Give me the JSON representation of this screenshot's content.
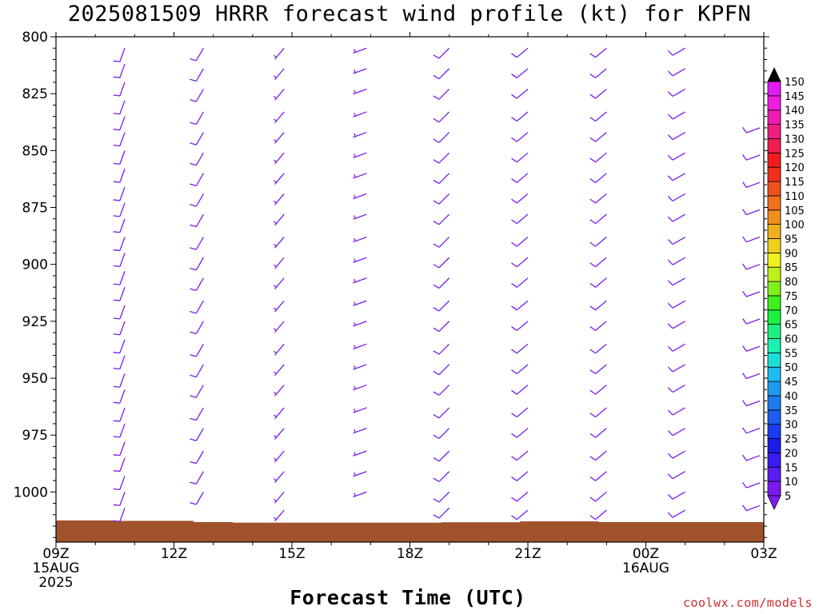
{
  "chart_data": {
    "type": "wind_barb_profile",
    "title": "2025081509 HRRR forecast wind profile (kt) for KPFN",
    "xlabel": "Forecast Time (UTC)",
    "ylabel": "",
    "credit": "coolwx.com/models",
    "x_ticks": [
      {
        "label": "09Z",
        "sub": [
          "15AUG",
          "2025"
        ],
        "hour": 0
      },
      {
        "label": "12Z",
        "sub": [],
        "hour": 3
      },
      {
        "label": "15Z",
        "sub": [],
        "hour": 6
      },
      {
        "label": "18Z",
        "sub": [],
        "hour": 9
      },
      {
        "label": "21Z",
        "sub": [],
        "hour": 12
      },
      {
        "label": "00Z",
        "sub": [
          "16AUG"
        ],
        "hour": 15
      },
      {
        "label": "03Z",
        "sub": [],
        "hour": 18
      }
    ],
    "x_range_hours": [
      0,
      18
    ],
    "y_ticks": [
      800,
      825,
      850,
      875,
      900,
      925,
      950,
      975,
      1000
    ],
    "y_range_hpa": [
      800,
      1022
    ],
    "colorbar": {
      "levels": [
        5,
        10,
        15,
        20,
        25,
        30,
        35,
        40,
        45,
        50,
        55,
        60,
        65,
        70,
        75,
        80,
        85,
        90,
        95,
        100,
        105,
        110,
        115,
        120,
        125,
        130,
        135,
        140,
        145,
        150
      ],
      "colors": [
        "#7a1cf0",
        "#5a1cf0",
        "#3a1cf0",
        "#1c1ce8",
        "#1c3cf0",
        "#1c5cf0",
        "#1c7cf0",
        "#1c9cf0",
        "#1cbcf0",
        "#1ce0d8",
        "#1cf0b0",
        "#1cf080",
        "#1cf040",
        "#40f01c",
        "#80f01c",
        "#c0f01c",
        "#f0f01c",
        "#f0d01c",
        "#f0b01c",
        "#f0901c",
        "#f0701c",
        "#f0501c",
        "#f0301c",
        "#f01c1c",
        "#f01c50",
        "#f01c80",
        "#f01cb0",
        "#f01ce0",
        "#e01cf0",
        "#000000"
      ]
    },
    "terrain_color": "#a0522d",
    "terrain_surface_hpa": [
      [
        0,
        1012.5
      ],
      [
        1.5,
        1012.7
      ],
      [
        3.5,
        1013.2
      ],
      [
        4.5,
        1013.5
      ],
      [
        9.8,
        1013.3
      ],
      [
        11.8,
        1012.9
      ],
      [
        13.8,
        1013.2
      ],
      [
        18,
        1013.2
      ]
    ],
    "barb_color": "#7a1cf0",
    "profiles": [
      {
        "hour": 1.75,
        "from_dir_deg": 200,
        "speed_kt": 10,
        "levels": [
          805,
          812,
          820,
          828,
          835,
          842,
          850,
          858,
          866,
          873,
          880,
          888,
          895,
          903,
          910,
          918,
          925,
          933,
          940,
          948,
          955,
          963,
          970,
          978,
          985,
          993,
          1000,
          1007
        ]
      },
      {
        "hour": 3.75,
        "from_dir_deg": 210,
        "speed_kt": 10,
        "levels": [
          805,
          814,
          823,
          833,
          842,
          851,
          860,
          869,
          878,
          888,
          897,
          906,
          916,
          925,
          935,
          944,
          953,
          963,
          972,
          982,
          991,
          1000
        ]
      },
      {
        "hour": 5.8,
        "from_dir_deg": 220,
        "speed_kt": 8,
        "levels": [
          805,
          814,
          823,
          833,
          842,
          851,
          860,
          869,
          878,
          888,
          897,
          906,
          916,
          925,
          935,
          944,
          953,
          963,
          972,
          982,
          991,
          1000,
          1008
        ]
      },
      {
        "hour": 7.9,
        "from_dir_deg": 250,
        "speed_kt": 8,
        "levels": [
          805,
          814,
          823,
          833,
          842,
          851,
          860,
          869,
          878,
          888,
          897,
          906,
          916,
          925,
          935,
          944,
          953,
          963,
          972,
          982,
          991,
          1000
        ]
      },
      {
        "hour": 10.0,
        "from_dir_deg": 225,
        "speed_kt": 10,
        "levels": [
          805,
          814,
          823,
          833,
          842,
          851,
          860,
          869,
          878,
          888,
          897,
          906,
          916,
          925,
          935,
          944,
          953,
          963,
          972,
          982,
          991,
          1000,
          1007
        ]
      },
      {
        "hour": 12.0,
        "from_dir_deg": 230,
        "speed_kt": 10,
        "levels": [
          805,
          814,
          823,
          833,
          842,
          851,
          860,
          869,
          878,
          888,
          897,
          906,
          916,
          925,
          935,
          944,
          953,
          963,
          972,
          982,
          991,
          1000,
          1008
        ]
      },
      {
        "hour": 14.0,
        "from_dir_deg": 230,
        "speed_kt": 10,
        "levels": [
          805,
          814,
          823,
          833,
          842,
          851,
          860,
          869,
          878,
          888,
          897,
          906,
          916,
          925,
          935,
          944,
          953,
          963,
          972,
          982,
          991,
          1000,
          1008
        ]
      },
      {
        "hour": 16.0,
        "from_dir_deg": 240,
        "speed_kt": 10,
        "levels": [
          805,
          814,
          823,
          833,
          842,
          851,
          860,
          869,
          878,
          888,
          897,
          906,
          916,
          925,
          935,
          944,
          953,
          963,
          972,
          982,
          991,
          1000,
          1008
        ]
      },
      {
        "hour": 17.9,
        "from_dir_deg": 250,
        "speed_kt": 10,
        "levels": [
          840,
          852,
          864,
          876,
          888,
          900,
          912,
          924,
          936,
          948,
          960,
          972,
          984,
          996,
          1006
        ]
      }
    ]
  }
}
